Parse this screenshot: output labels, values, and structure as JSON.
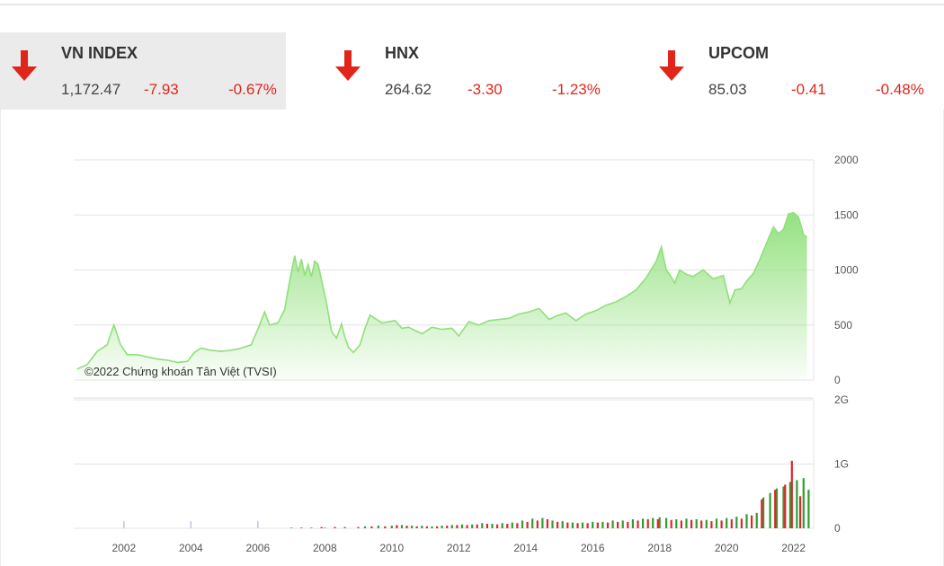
{
  "tickers": [
    {
      "name": "VN INDEX",
      "price": "1,172.47",
      "change": "-7.93",
      "percent": "-0.67%",
      "direction": "down-arrow-icon"
    },
    {
      "name": "HNX",
      "price": "264.62",
      "change": "-3.30",
      "percent": "-1.23%",
      "direction": "down-arrow-icon"
    },
    {
      "name": "UPCOM",
      "price": "85.03",
      "change": "-0.41",
      "percent": "-0.48%",
      "direction": "down-arrow-icon"
    }
  ],
  "colors": {
    "down": "#e0261b",
    "area_fill": "#90e07a",
    "area_line": "#8fe07a",
    "vol_up": "#2e9e2e",
    "vol_down": "#e0262b",
    "vol_old": "#b8c8e0"
  },
  "chart_data": [
    {
      "type": "area",
      "title": "",
      "annotation": "©2022 Chứng khoán Tân Việt (TVSI)",
      "xlabel": "",
      "ylabel": "",
      "xlim": [
        2000.5,
        2022.6
      ],
      "ylim": [
        0,
        2000
      ],
      "yticks": [
        "0",
        "500",
        "1000",
        "1500",
        "2000"
      ],
      "xticks": [
        "2002",
        "2004",
        "2006",
        "2008",
        "2010",
        "2012",
        "2014",
        "2016",
        "2018",
        "2020",
        "2022"
      ],
      "grid": true,
      "series": [
        {
          "x": [
            2000.6,
            2000.9,
            2001.2,
            2001.5,
            2001.7,
            2001.9,
            2002.1,
            2002.4,
            2002.7,
            2003.0,
            2003.3,
            2003.6,
            2003.9,
            2004.1,
            2004.3,
            2004.6,
            2004.9,
            2005.2,
            2005.5,
            2005.8,
            2006.0,
            2006.2,
            2006.35,
            2006.6,
            2006.8,
            2006.95,
            2007.1,
            2007.2,
            2007.3,
            2007.4,
            2007.5,
            2007.6,
            2007.7,
            2007.8,
            2007.9,
            2008.05,
            2008.2,
            2008.35,
            2008.5,
            2008.6,
            2008.7,
            2008.85,
            2009.05,
            2009.2,
            2009.35,
            2009.5,
            2009.7,
            2009.9,
            2010.1,
            2010.3,
            2010.5,
            2010.7,
            2010.9,
            2011.2,
            2011.5,
            2011.8,
            2012.0,
            2012.3,
            2012.6,
            2012.9,
            2013.2,
            2013.5,
            2013.8,
            2014.1,
            2014.4,
            2014.7,
            2014.9,
            2015.2,
            2015.5,
            2015.8,
            2016.1,
            2016.4,
            2016.7,
            2017.0,
            2017.3,
            2017.6,
            2017.9,
            2018.05,
            2018.2,
            2018.3,
            2018.45,
            2018.6,
            2018.8,
            2019.0,
            2019.3,
            2019.6,
            2019.9,
            2020.1,
            2020.25,
            2020.45,
            2020.6,
            2020.8,
            2021.0,
            2021.2,
            2021.4,
            2021.55,
            2021.7,
            2021.85,
            2022.0,
            2022.15,
            2022.3,
            2022.4
          ],
          "y": [
            100,
            140,
            260,
            320,
            500,
            320,
            230,
            230,
            210,
            190,
            180,
            160,
            170,
            250,
            290,
            270,
            260,
            270,
            290,
            320,
            460,
            620,
            500,
            520,
            640,
            900,
            1130,
            980,
            1100,
            950,
            1050,
            940,
            1080,
            1050,
            910,
            700,
            440,
            380,
            510,
            390,
            300,
            250,
            320,
            470,
            590,
            560,
            520,
            530,
            540,
            470,
            480,
            450,
            420,
            480,
            460,
            470,
            400,
            530,
            500,
            540,
            550,
            560,
            600,
            620,
            650,
            550,
            580,
            610,
            540,
            600,
            630,
            680,
            710,
            760,
            820,
            930,
            1080,
            1210,
            1000,
            960,
            880,
            1000,
            960,
            940,
            1000,
            920,
            950,
            700,
            820,
            830,
            900,
            970,
            1100,
            1250,
            1390,
            1330,
            1370,
            1510,
            1520,
            1480,
            1320,
            1300
          ]
        }
      ]
    },
    {
      "type": "bar",
      "title": "",
      "xlabel": "",
      "ylabel": "",
      "xlim": [
        2000.5,
        2022.6
      ],
      "ylim": [
        0,
        2
      ],
      "yticks": [
        "0",
        "1G",
        "2G"
      ],
      "grid": true,
      "series": [
        {
          "x": [
            2002.0,
            2004.0,
            2006.0
          ],
          "values": [
            0.11,
            0.11,
            0.11
          ],
          "color_key": "vol_old"
        },
        {
          "x": [
            2007.0,
            2007.6,
            2008.0,
            2008.6,
            2009.2,
            2009.6,
            2010.0,
            2010.3,
            2010.6,
            2010.9,
            2011.2,
            2011.5,
            2011.8,
            2012.1,
            2012.4,
            2012.7,
            2013.0,
            2013.3,
            2013.6,
            2013.9,
            2014.2,
            2014.5,
            2014.8,
            2015.1,
            2015.4,
            2015.7,
            2016.0,
            2016.3,
            2016.6,
            2016.9,
            2017.2,
            2017.5,
            2017.8,
            2018.0,
            2018.2,
            2018.5,
            2018.8,
            2019.1,
            2019.4,
            2019.7,
            2020.0,
            2020.3,
            2020.6,
            2020.9,
            2021.1,
            2021.3,
            2021.5,
            2021.7,
            2021.9,
            2022.1,
            2022.3,
            2022.45
          ],
          "values": [
            0.01,
            0.01,
            0.01,
            0.02,
            0.03,
            0.04,
            0.04,
            0.05,
            0.04,
            0.04,
            0.03,
            0.04,
            0.05,
            0.06,
            0.06,
            0.08,
            0.07,
            0.08,
            0.09,
            0.12,
            0.15,
            0.16,
            0.12,
            0.11,
            0.09,
            0.09,
            0.1,
            0.1,
            0.12,
            0.12,
            0.14,
            0.15,
            0.16,
            0.17,
            0.16,
            0.14,
            0.15,
            0.14,
            0.13,
            0.15,
            0.16,
            0.18,
            0.22,
            0.24,
            0.48,
            0.55,
            0.62,
            0.65,
            0.72,
            0.75,
            0.78,
            0.6
          ],
          "color_key": "vol_up"
        },
        {
          "x": [
            2007.3,
            2007.9,
            2008.3,
            2009.0,
            2009.4,
            2009.8,
            2010.15,
            2010.45,
            2010.75,
            2011.05,
            2011.35,
            2011.65,
            2011.95,
            2012.25,
            2012.55,
            2012.85,
            2013.15,
            2013.45,
            2013.75,
            2014.05,
            2014.35,
            2014.65,
            2014.95,
            2015.25,
            2015.55,
            2015.85,
            2016.15,
            2016.45,
            2016.75,
            2017.05,
            2017.35,
            2017.65,
            2017.95,
            2018.35,
            2018.65,
            2018.95,
            2019.25,
            2019.55,
            2019.85,
            2020.15,
            2020.45,
            2020.75,
            2021.05,
            2021.45,
            2021.75,
            2021.95,
            2022.2
          ],
          "values": [
            0.01,
            0.02,
            0.02,
            0.02,
            0.03,
            0.03,
            0.05,
            0.04,
            0.03,
            0.03,
            0.03,
            0.04,
            0.05,
            0.05,
            0.06,
            0.07,
            0.06,
            0.07,
            0.08,
            0.1,
            0.12,
            0.14,
            0.1,
            0.09,
            0.08,
            0.08,
            0.09,
            0.09,
            0.1,
            0.1,
            0.12,
            0.14,
            0.14,
            0.13,
            0.12,
            0.13,
            0.12,
            0.11,
            0.12,
            0.14,
            0.15,
            0.2,
            0.45,
            0.6,
            0.68,
            1.05,
            0.5
          ],
          "color_key": "vol_down"
        }
      ]
    }
  ]
}
